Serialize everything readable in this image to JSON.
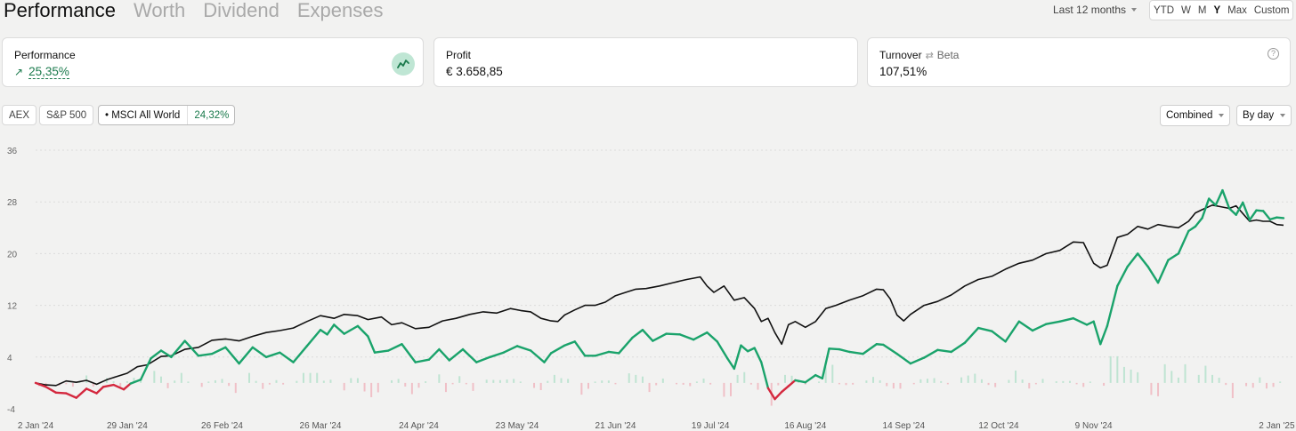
{
  "tabs": [
    {
      "label": "Performance",
      "active": true
    },
    {
      "label": "Worth",
      "active": false
    },
    {
      "label": "Dividend",
      "active": false
    },
    {
      "label": "Expenses",
      "active": false
    }
  ],
  "range_select": {
    "label": "Last 12 months"
  },
  "periods": [
    "YTD",
    "W",
    "M",
    "Y",
    "Max",
    "Custom"
  ],
  "selected_period": "Y",
  "cards": {
    "performance": {
      "label": "Performance",
      "arrow": "↗",
      "value": "25,35%"
    },
    "profit": {
      "label": "Profit",
      "value": "€ 3.658,85"
    },
    "turnover": {
      "label": "Turnover",
      "alt_label": "Beta",
      "value": "107,51%",
      "help": "?"
    }
  },
  "benchmarks": [
    {
      "label": "AEX"
    },
    {
      "label": "S&P 500"
    },
    {
      "label": "• MSCI All World",
      "value": "24,32%",
      "active": true
    }
  ],
  "controls": {
    "mode": "Combined",
    "granularity": "By day"
  },
  "colors": {
    "positive": "#1aa36b",
    "negative": "#d4283e",
    "benchmark": "#111111",
    "pos_bar": "#bfe4d2",
    "neg_bar": "#f0c0c7"
  },
  "chart_data": {
    "type": "line",
    "y_ticks": [
      36,
      28,
      20,
      12,
      4,
      -4
    ],
    "ylim": [
      -4,
      36
    ],
    "x_labels": [
      "2 Jan '24",
      "29 Jan '24",
      "26 Feb '24",
      "26 Mar '24",
      "24 Apr '24",
      "23 May '24",
      "21 Jun '24",
      "19 Jul '24",
      "16 Aug '24",
      "14 Sep '24",
      "12 Oct '24",
      "9 Nov '24",
      "2 Jan '25"
    ],
    "x_label_days": [
      0,
      27,
      55,
      84,
      113,
      142,
      171,
      199,
      227,
      256,
      284,
      312,
      366
    ],
    "series": [
      {
        "name": "Performance",
        "points": [
          [
            0,
            0
          ],
          [
            3,
            -0.6
          ],
          [
            6,
            -1.5
          ],
          [
            9,
            -1.6
          ],
          [
            12,
            -2.3
          ],
          [
            15,
            -0.9
          ],
          [
            18,
            -1.6
          ],
          [
            20,
            -0.6
          ],
          [
            23,
            -0.3
          ],
          [
            26,
            -1.0
          ],
          [
            28,
            -0.1
          ],
          [
            31,
            0.5
          ],
          [
            34,
            3.8
          ],
          [
            37,
            5.0
          ],
          [
            40,
            4.0
          ],
          [
            44,
            6.5
          ],
          [
            48,
            4.2
          ],
          [
            52,
            4.5
          ],
          [
            56,
            5.5
          ],
          [
            60,
            3.0
          ],
          [
            64,
            5.5
          ],
          [
            68,
            4.0
          ],
          [
            72,
            4.7
          ],
          [
            76,
            3.2
          ],
          [
            80,
            5.7
          ],
          [
            84,
            8.2
          ],
          [
            86,
            7.5
          ],
          [
            88,
            9.0
          ],
          [
            91,
            7.6
          ],
          [
            95,
            8.8
          ],
          [
            98,
            7.2
          ],
          [
            100,
            4.7
          ],
          [
            104,
            5.0
          ],
          [
            108,
            6.0
          ],
          [
            112,
            3.2
          ],
          [
            116,
            3.6
          ],
          [
            119,
            5.2
          ],
          [
            122,
            3.5
          ],
          [
            126,
            5.2
          ],
          [
            130,
            3.2
          ],
          [
            134,
            4.0
          ],
          [
            138,
            4.7
          ],
          [
            142,
            5.7
          ],
          [
            146,
            5.0
          ],
          [
            150,
            3.2
          ],
          [
            152,
            4.6
          ],
          [
            156,
            5.8
          ],
          [
            159,
            6.4
          ],
          [
            162,
            4.2
          ],
          [
            165,
            4.2
          ],
          [
            169,
            4.8
          ],
          [
            172,
            4.6
          ],
          [
            176,
            7.0
          ],
          [
            179,
            8.2
          ],
          [
            182,
            6.5
          ],
          [
            186,
            7.6
          ],
          [
            190,
            7.5
          ],
          [
            194,
            6.7
          ],
          [
            198,
            7.8
          ],
          [
            201,
            6.4
          ],
          [
            204,
            3.8
          ],
          [
            206,
            2.2
          ],
          [
            208,
            5.8
          ],
          [
            210,
            4.9
          ],
          [
            212,
            5.4
          ],
          [
            214,
            3.2
          ],
          [
            216,
            -0.8
          ],
          [
            218,
            -2.5
          ],
          [
            220,
            -1.4
          ],
          [
            222,
            -0.5
          ],
          [
            224,
            0.4
          ],
          [
            227,
            0.1
          ],
          [
            230,
            1.2
          ],
          [
            232,
            0.7
          ],
          [
            234,
            5.3
          ],
          [
            237,
            5.2
          ],
          [
            240,
            4.8
          ],
          [
            244,
            4.5
          ],
          [
            248,
            6.0
          ],
          [
            250,
            5.9
          ],
          [
            254,
            4.5
          ],
          [
            258,
            3.0
          ],
          [
            262,
            3.9
          ],
          [
            266,
            5.1
          ],
          [
            270,
            4.8
          ],
          [
            274,
            6.2
          ],
          [
            278,
            8.5
          ],
          [
            282,
            8.0
          ],
          [
            286,
            6.4
          ],
          [
            290,
            9.5
          ],
          [
            294,
            8.1
          ],
          [
            298,
            9.1
          ],
          [
            302,
            9.5
          ],
          [
            306,
            10.0
          ],
          [
            310,
            9.0
          ],
          [
            312,
            9.5
          ],
          [
            314,
            6.0
          ],
          [
            316,
            8.8
          ],
          [
            319,
            15.0
          ],
          [
            322,
            18.0
          ],
          [
            325,
            20.0
          ],
          [
            328,
            18.0
          ],
          [
            331,
            15.5
          ],
          [
            334,
            19.0
          ],
          [
            337,
            20.0
          ],
          [
            340,
            23.5
          ],
          [
            342,
            24.2
          ],
          [
            344,
            25.5
          ],
          [
            346,
            28.5
          ],
          [
            348,
            27.5
          ],
          [
            350,
            29.8
          ],
          [
            352,
            27.0
          ],
          [
            354,
            26.0
          ],
          [
            356,
            27.9
          ],
          [
            358,
            25.2
          ],
          [
            360,
            26.7
          ],
          [
            362,
            26.6
          ],
          [
            364,
            25.3
          ],
          [
            366,
            25.6
          ],
          [
            368,
            25.5
          ]
        ]
      },
      {
        "name": "MSCI All World",
        "points": [
          [
            0,
            0
          ],
          [
            3,
            -0.3
          ],
          [
            6,
            -0.4
          ],
          [
            9,
            0.3
          ],
          [
            12,
            0.1
          ],
          [
            15,
            0.4
          ],
          [
            18,
            -0.2
          ],
          [
            21,
            0.5
          ],
          [
            24,
            1.0
          ],
          [
            27,
            1.5
          ],
          [
            30,
            2.5
          ],
          [
            33,
            2.8
          ],
          [
            37,
            4.1
          ],
          [
            40,
            4.2
          ],
          [
            44,
            5.2
          ],
          [
            48,
            5.5
          ],
          [
            52,
            6.6
          ],
          [
            56,
            6.8
          ],
          [
            60,
            6.5
          ],
          [
            64,
            7.2
          ],
          [
            68,
            7.8
          ],
          [
            72,
            8.1
          ],
          [
            76,
            8.5
          ],
          [
            80,
            9.5
          ],
          [
            84,
            10.4
          ],
          [
            88,
            10.0
          ],
          [
            91,
            10.6
          ],
          [
            95,
            10.4
          ],
          [
            98,
            9.8
          ],
          [
            102,
            10.2
          ],
          [
            105,
            9.0
          ],
          [
            108,
            9.3
          ],
          [
            112,
            8.4
          ],
          [
            116,
            8.6
          ],
          [
            120,
            9.6
          ],
          [
            124,
            10.0
          ],
          [
            128,
            10.6
          ],
          [
            132,
            11.0
          ],
          [
            136,
            10.8
          ],
          [
            140,
            11.5
          ],
          [
            143,
            11.2
          ],
          [
            146,
            11.0
          ],
          [
            149,
            10.0
          ],
          [
            152,
            9.6
          ],
          [
            154,
            9.5
          ],
          [
            156,
            10.5
          ],
          [
            159,
            11.3
          ],
          [
            162,
            12.0
          ],
          [
            165,
            12.0
          ],
          [
            168,
            12.5
          ],
          [
            171,
            13.5
          ],
          [
            174,
            14.0
          ],
          [
            177,
            14.5
          ],
          [
            180,
            14.6
          ],
          [
            184,
            15.0
          ],
          [
            188,
            15.5
          ],
          [
            192,
            16.0
          ],
          [
            196,
            16.4
          ],
          [
            198,
            15.0
          ],
          [
            200,
            14.0
          ],
          [
            203,
            15.0
          ],
          [
            206,
            12.8
          ],
          [
            209,
            13.2
          ],
          [
            212,
            11.5
          ],
          [
            214,
            9.5
          ],
          [
            216,
            10.0
          ],
          [
            218,
            7.8
          ],
          [
            220,
            6.0
          ],
          [
            222,
            9.0
          ],
          [
            224,
            9.5
          ],
          [
            227,
            8.6
          ],
          [
            230,
            9.5
          ],
          [
            233,
            11.5
          ],
          [
            236,
            12.0
          ],
          [
            240,
            12.8
          ],
          [
            244,
            13.5
          ],
          [
            248,
            14.5
          ],
          [
            250,
            14.4
          ],
          [
            252,
            13.0
          ],
          [
            254,
            10.5
          ],
          [
            256,
            9.6
          ],
          [
            258,
            10.6
          ],
          [
            262,
            12.0
          ],
          [
            266,
            12.6
          ],
          [
            270,
            13.6
          ],
          [
            274,
            15.0
          ],
          [
            278,
            16.0
          ],
          [
            282,
            16.5
          ],
          [
            286,
            17.6
          ],
          [
            290,
            18.5
          ],
          [
            294,
            19.0
          ],
          [
            298,
            20.0
          ],
          [
            302,
            20.5
          ],
          [
            306,
            21.8
          ],
          [
            309,
            21.7
          ],
          [
            312,
            18.5
          ],
          [
            314,
            17.8
          ],
          [
            316,
            18.2
          ],
          [
            319,
            22.5
          ],
          [
            322,
            23.0
          ],
          [
            325,
            24.2
          ],
          [
            328,
            23.8
          ],
          [
            331,
            24.5
          ],
          [
            334,
            24.2
          ],
          [
            337,
            24.0
          ],
          [
            340,
            25.0
          ],
          [
            342,
            26.3
          ],
          [
            344,
            26.8
          ],
          [
            347,
            27.5
          ],
          [
            350,
            27.2
          ],
          [
            352,
            27.0
          ],
          [
            354,
            27.4
          ],
          [
            356,
            26.2
          ],
          [
            358,
            25.0
          ],
          [
            360,
            25.2
          ],
          [
            362,
            25.0
          ],
          [
            364,
            25.0
          ],
          [
            366,
            24.5
          ],
          [
            368,
            24.4
          ]
        ]
      }
    ]
  }
}
